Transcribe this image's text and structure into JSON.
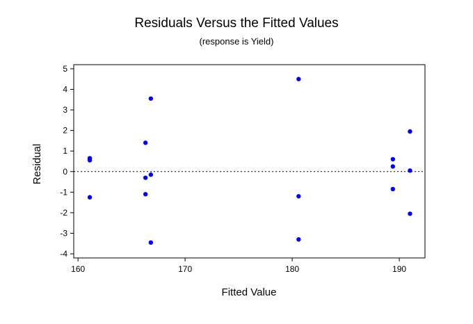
{
  "chart_data": {
    "type": "scatter",
    "title": "Residuals Versus the Fitted Values",
    "subtitle": "(response is Yield)",
    "xlabel": "Fitted Value",
    "ylabel": "Residual",
    "xlim": [
      159.6,
      192.4
    ],
    "ylim": [
      -4.2,
      5.2
    ],
    "x_ticks": [
      160,
      170,
      180,
      190
    ],
    "y_ticks": [
      -4,
      -3,
      -2,
      -1,
      0,
      1,
      2,
      3,
      4,
      5
    ],
    "x_tick_labels": [
      "160",
      "170",
      "180",
      "190"
    ],
    "y_tick_labels": [
      "-4",
      "-3",
      "-2",
      "-1",
      "0",
      "1",
      "2",
      "3",
      "4",
      "5"
    ],
    "reference_line_y": 0,
    "reference_line_style": "dotted",
    "grid": false,
    "marker_color": "#0000ff",
    "points": [
      {
        "x": 161.1,
        "y": 0.65
      },
      {
        "x": 161.1,
        "y": 0.55
      },
      {
        "x": 161.1,
        "y": -1.25
      },
      {
        "x": 166.3,
        "y": 1.4
      },
      {
        "x": 166.3,
        "y": -0.3
      },
      {
        "x": 166.3,
        "y": -1.1
      },
      {
        "x": 166.8,
        "y": 3.55
      },
      {
        "x": 166.8,
        "y": -0.15
      },
      {
        "x": 166.8,
        "y": -3.45
      },
      {
        "x": 180.6,
        "y": 4.5
      },
      {
        "x": 180.6,
        "y": -1.2
      },
      {
        "x": 180.6,
        "y": -3.3
      },
      {
        "x": 189.4,
        "y": 0.6
      },
      {
        "x": 189.4,
        "y": 0.25
      },
      {
        "x": 189.4,
        "y": -0.85
      },
      {
        "x": 191.0,
        "y": 1.95
      },
      {
        "x": 191.0,
        "y": 0.05
      },
      {
        "x": 191.0,
        "y": -2.05
      }
    ]
  }
}
